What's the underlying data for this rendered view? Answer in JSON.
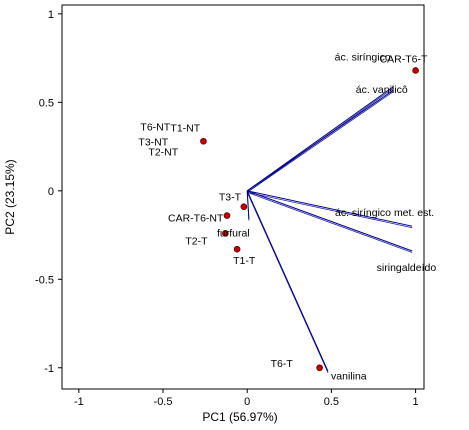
{
  "chart_data": {
    "type": "scatter",
    "xlabel": "PC1 (56.97%)",
    "ylabel": "PC2 (23.15%)",
    "xlim": [
      -1.1,
      1.05
    ],
    "ylim": [
      -1.12,
      1.05
    ],
    "x_ticks": [
      -1,
      -0.5,
      0,
      0.5,
      1
    ],
    "y_ticks": [
      -1,
      -0.5,
      0,
      0.5,
      1
    ],
    "x_tick_labels": [
      "-1",
      "-0.5",
      "0",
      "0.5",
      "1"
    ],
    "y_tick_labels": [
      "-1",
      "-0.5",
      "0",
      "0.5",
      "1"
    ],
    "grid": false,
    "points": [
      {
        "label": "CAR-T6-T",
        "x": 1.0,
        "y": 0.68
      },
      {
        "label": "T6-NT",
        "x": -0.26,
        "y": 0.28
      },
      {
        "label": "T1-NT",
        "x": -0.26,
        "y": 0.28
      },
      {
        "label": "T3-NT",
        "x": -0.26,
        "y": 0.28
      },
      {
        "label": "T2-NT",
        "x": -0.26,
        "y": 0.28
      },
      {
        "label": "T3-T",
        "x": -0.02,
        "y": -0.09
      },
      {
        "label": "CAR-T6-NT",
        "x": -0.12,
        "y": -0.14
      },
      {
        "label": "furfural",
        "x": -0.12,
        "y": -0.14
      },
      {
        "label": "T2-T",
        "x": -0.13,
        "y": -0.24
      },
      {
        "label": "T1-T",
        "x": -0.06,
        "y": -0.33
      },
      {
        "label": "T6-T",
        "x": 0.43,
        "y": -1.0
      }
    ],
    "loadings": [
      {
        "label": "ác. siríngico",
        "x": 0.87,
        "y": 0.59
      },
      {
        "label": "ác. vanilicô",
        "x": 0.87,
        "y": 0.57
      },
      {
        "label": "ác. siríngico met. est.",
        "x": 0.98,
        "y": -0.2
      },
      {
        "label": "siringaldeído",
        "x": 0.98,
        "y": -0.34
      },
      {
        "label": "vanilina",
        "x": 0.48,
        "y": -1.02
      },
      {
        "label": "furfural",
        "x": 0.01,
        "y": -0.16
      }
    ],
    "colors": {
      "point": "#c00000",
      "loading": "#00008b",
      "axis": "#000000"
    }
  }
}
